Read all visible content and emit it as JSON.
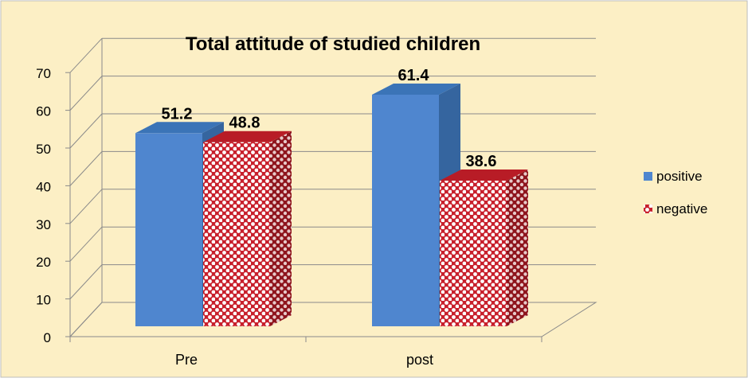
{
  "chart_data": {
    "type": "bar",
    "title": "Total attitude of studied children",
    "xlabel": "",
    "ylabel": "",
    "categories": [
      "Pre",
      "post"
    ],
    "series": [
      {
        "name": "positive",
        "values": [
          51.2,
          61.4
        ]
      },
      {
        "name": "negative",
        "values": [
          48.8,
          38.6
        ]
      }
    ],
    "ylim": [
      0,
      70
    ],
    "yticks": [
      "0",
      "10",
      "20",
      "30",
      "40",
      "50",
      "60",
      "70"
    ],
    "data_labels": [
      [
        "51.2",
        "61.4"
      ],
      [
        "48.8",
        "38.6"
      ]
    ],
    "grid": true,
    "three_d": true,
    "legend_position": "right",
    "colors": {
      "background": "#fcefc5",
      "positive": "#4f86cf",
      "negative": "#c8202c",
      "grid": "#8a8a8a"
    }
  }
}
